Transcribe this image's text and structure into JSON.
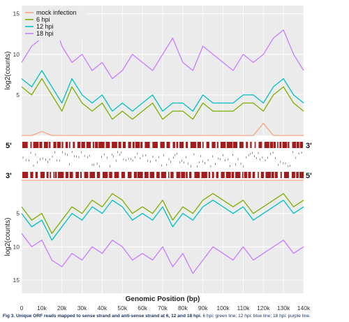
{
  "figure": {
    "caption_bold": "Fig 3. Unique ORF reads mapped to sense strand and anti-sense strand at 6, 12 and 18 hpi.",
    "caption_rest": " 6 hpi: green line; 12 hpi: blue line; 18 hpi: purple line."
  },
  "chart_data": {
    "type": "line",
    "title": "",
    "xlabel": "Genomic Position (bp)",
    "ylabel_top": "log2(counts)",
    "ylabel_bottom": "log2(counts)",
    "x_ticks": [
      "0",
      "10k",
      "20k",
      "30k",
      "40k",
      "50k",
      "60k",
      "70k",
      "80k",
      "90k",
      "100k",
      "110k",
      "120k",
      "130k",
      "140k"
    ],
    "xlim": [
      0,
      140000
    ],
    "top_panel": {
      "strand": "sense",
      "ylim": [
        0,
        16
      ],
      "y_ticks": [
        5,
        10,
        15
      ]
    },
    "bottom_panel": {
      "strand": "anti-sense",
      "ylim": [
        0,
        17
      ],
      "inverted": true,
      "y_ticks": [
        5,
        10,
        15
      ]
    },
    "strand_labels": {
      "top_left": "5'",
      "top_right": "3'",
      "bottom_left": "3'",
      "bottom_right": "5'"
    },
    "legend": {
      "position": "top-left"
    },
    "series": [
      {
        "name": "mock infection",
        "color": "#f4a582",
        "top_x": [
          0,
          5000,
          10000,
          15000,
          20000,
          25000,
          30000,
          35000,
          40000,
          45000,
          50000,
          55000,
          60000,
          65000,
          70000,
          75000,
          80000,
          85000,
          90000,
          95000,
          100000,
          105000,
          110000,
          115000,
          120000,
          125000,
          130000,
          135000,
          140000
        ],
        "top_y": [
          0,
          0,
          0.5,
          0,
          0,
          0,
          0,
          0,
          0,
          0,
          0,
          0,
          0,
          0,
          0,
          0,
          0,
          0,
          0,
          0,
          0,
          0,
          0,
          0,
          1.5,
          0,
          0,
          0,
          0
        ],
        "bottom_x": [
          0,
          20000,
          40000,
          60000,
          80000,
          100000,
          120000,
          140000
        ],
        "bottom_y": [
          0,
          0,
          0,
          0,
          0,
          0,
          0,
          0
        ]
      },
      {
        "name": "6 hpi",
        "color": "#7cae00",
        "top_x": [
          0,
          5000,
          10000,
          15000,
          20000,
          25000,
          30000,
          35000,
          40000,
          45000,
          50000,
          55000,
          60000,
          65000,
          70000,
          75000,
          80000,
          85000,
          90000,
          95000,
          100000,
          105000,
          110000,
          115000,
          120000,
          125000,
          130000,
          135000,
          140000
        ],
        "top_y": [
          6,
          5,
          7,
          5,
          3,
          6,
          4,
          3,
          4,
          2,
          3,
          2,
          3,
          4,
          2,
          3,
          3,
          2,
          4,
          3,
          3,
          3,
          4,
          4,
          3,
          5,
          6,
          4,
          3
        ],
        "bottom_x": [
          0,
          5000,
          10000,
          15000,
          20000,
          25000,
          30000,
          35000,
          40000,
          45000,
          50000,
          55000,
          60000,
          65000,
          70000,
          75000,
          80000,
          85000,
          90000,
          95000,
          100000,
          105000,
          110000,
          115000,
          120000,
          125000,
          130000,
          135000,
          140000
        ],
        "bottom_y": [
          4,
          6,
          5,
          8,
          6,
          4,
          5,
          3,
          4,
          2,
          3,
          5,
          4,
          5,
          3,
          6,
          4,
          5,
          3,
          2,
          3,
          4,
          3,
          5,
          4,
          3,
          2,
          4,
          3
        ]
      },
      {
        "name": "12 hpi",
        "color": "#00bfc4",
        "top_x": [
          0,
          5000,
          10000,
          15000,
          20000,
          25000,
          30000,
          35000,
          40000,
          45000,
          50000,
          55000,
          60000,
          65000,
          70000,
          75000,
          80000,
          85000,
          90000,
          95000,
          100000,
          105000,
          110000,
          115000,
          120000,
          125000,
          130000,
          135000,
          140000
        ],
        "top_y": [
          7,
          6,
          8,
          6,
          4,
          7,
          5,
          4,
          5,
          3,
          4,
          3,
          4,
          5,
          3,
          4,
          4,
          3,
          5,
          4,
          4,
          4,
          5,
          5,
          4,
          6,
          7,
          5,
          4
        ],
        "bottom_x": [
          0,
          5000,
          10000,
          15000,
          20000,
          25000,
          30000,
          35000,
          40000,
          45000,
          50000,
          55000,
          60000,
          65000,
          70000,
          75000,
          80000,
          85000,
          90000,
          95000,
          100000,
          105000,
          110000,
          115000,
          120000,
          125000,
          130000,
          135000,
          140000
        ],
        "bottom_y": [
          5,
          7,
          6,
          9,
          7,
          5,
          6,
          4,
          5,
          3,
          4,
          6,
          5,
          6,
          4,
          7,
          5,
          6,
          4,
          3,
          4,
          5,
          4,
          6,
          5,
          4,
          3,
          5,
          4
        ]
      },
      {
        "name": "18 hpi",
        "color": "#c77cff",
        "top_x": [
          0,
          5000,
          10000,
          15000,
          20000,
          25000,
          30000,
          35000,
          40000,
          45000,
          50000,
          55000,
          60000,
          65000,
          70000,
          75000,
          80000,
          85000,
          90000,
          95000,
          100000,
          105000,
          110000,
          115000,
          120000,
          125000,
          130000,
          135000,
          140000
        ],
        "top_y": [
          9,
          11,
          12,
          15,
          11,
          9,
          10,
          8,
          9,
          7,
          8,
          10,
          9,
          8,
          10,
          12,
          9,
          8,
          11,
          10,
          9,
          8,
          10,
          9,
          10,
          12,
          13,
          10,
          8
        ],
        "bottom_x": [
          0,
          5000,
          10000,
          15000,
          20000,
          25000,
          30000,
          35000,
          40000,
          45000,
          50000,
          55000,
          60000,
          65000,
          70000,
          75000,
          80000,
          85000,
          90000,
          95000,
          100000,
          105000,
          110000,
          115000,
          120000,
          125000,
          130000,
          135000,
          140000
        ],
        "bottom_y": [
          8,
          10,
          9,
          12,
          13,
          11,
          12,
          10,
          11,
          9,
          10,
          12,
          11,
          12,
          10,
          13,
          11,
          14,
          12,
          10,
          11,
          12,
          10,
          12,
          11,
          10,
          9,
          11,
          10
        ]
      }
    ]
  }
}
